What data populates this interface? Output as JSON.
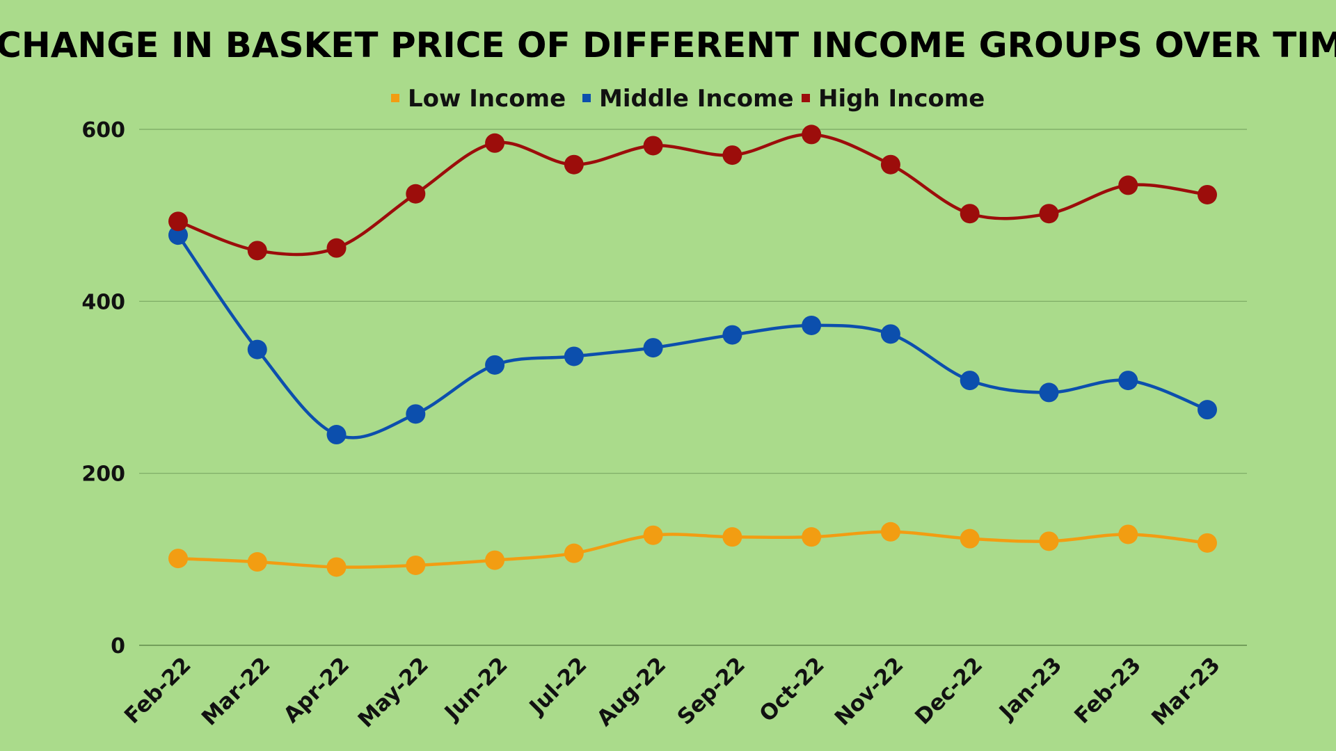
{
  "chart_data": {
    "type": "line",
    "title": "CHANGE IN BASKET PRICE OF DIFFERENT INCOME GROUPS OVER TIME",
    "xlabel": "",
    "ylabel": "",
    "categories": [
      "Feb-22",
      "Mar-22",
      "Apr-22",
      "May-22",
      "Jun-22",
      "Jul-22",
      "Aug-22",
      "Sep-22",
      "Oct-22",
      "Nov-22",
      "Dec-22",
      "Jan-23",
      "Feb-23",
      "Mar-23"
    ],
    "ylim": [
      0,
      600
    ],
    "yticks": [
      0,
      200,
      400,
      600
    ],
    "grid": true,
    "legend_position": "top-center",
    "series": [
      {
        "name": "Low Income",
        "color": "#f29d12",
        "values": [
          101,
          97,
          91,
          93,
          99,
          107,
          128,
          126,
          126,
          132,
          124,
          121,
          129,
          119
        ]
      },
      {
        "name": "Middle Income",
        "color": "#0c4fad",
        "values": [
          477,
          344,
          245,
          269,
          326,
          336,
          346,
          361,
          372,
          362,
          308,
          294,
          308,
          274
        ]
      },
      {
        "name": "High Income",
        "color": "#9c0d0b",
        "values": [
          493,
          459,
          462,
          525,
          584,
          559,
          581,
          570,
          594,
          559,
          502,
          502,
          535,
          524
        ]
      }
    ]
  }
}
